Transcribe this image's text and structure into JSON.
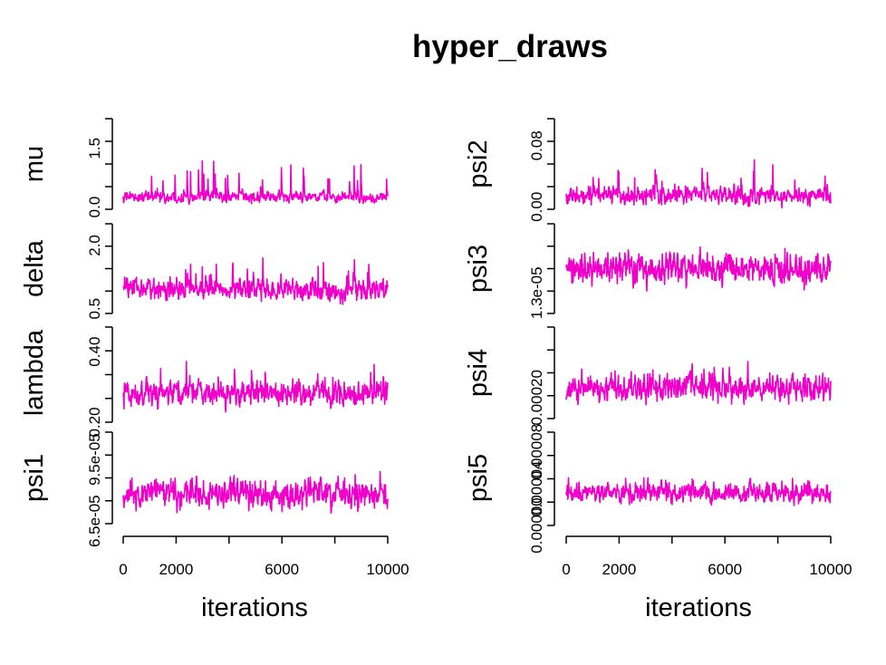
{
  "chart_data": {
    "type": "line",
    "title": "hyper_draws",
    "color": "#ee00c8",
    "x_range": [
      0,
      10000
    ],
    "xlabel": "iterations",
    "xticks": [
      0,
      2000,
      6000,
      10000
    ],
    "xtick_labels": [
      "0",
      "2000",
      "6000",
      "10000"
    ],
    "panels": [
      {
        "name": "mu",
        "ylabel": "mu",
        "column": 1,
        "row": 1,
        "yticks": [
          0.0,
          1.5
        ],
        "ytick_labels": [
          "0.0",
          "1.5"
        ],
        "ylim": [
          -0.15,
          2.35
        ],
        "baseline": 0.25,
        "noise": 0.12,
        "spike_rate": 0.06,
        "spike_scale": 0.9,
        "max": 2.3
      },
      {
        "name": "delta",
        "ylabel": "delta",
        "column": 1,
        "row": 2,
        "yticks": [
          0.5,
          2.0
        ],
        "ytick_labels": [
          "0.5",
          "2.0"
        ],
        "ylim": [
          0.3,
          2.6
        ],
        "baseline": 0.95,
        "noise": 0.22,
        "spike_rate": 0.05,
        "spike_scale": 0.7,
        "max": 2.5
      },
      {
        "name": "lambda",
        "ylabel": "lambda",
        "column": 1,
        "row": 3,
        "yticks": [
          0.2,
          0.4
        ],
        "ytick_labels": [
          "0.20",
          "0.40"
        ],
        "ylim": [
          0.2,
          0.48
        ],
        "baseline": 0.28,
        "noise": 0.03,
        "spike_rate": 0.04,
        "spike_scale": 0.06,
        "max": 0.46
      },
      {
        "name": "psi1",
        "ylabel": "psi1",
        "column": 1,
        "row": 4,
        "yticks": [
          6.5e-05,
          9.5e-05
        ],
        "ytick_labels": [
          "6.5e-05",
          "9.5e-05"
        ],
        "ylim": [
          6.2e-05,
          0.00011
        ],
        "baseline": 7.8e-05,
        "noise": 6e-06,
        "spike_rate": 0.03,
        "spike_scale": 8e-06,
        "max": 0.000108
      },
      {
        "name": "psi2",
        "ylabel": "psi2",
        "column": 2,
        "row": 1,
        "yticks": [
          0.0,
          0.08
        ],
        "ytick_labels": [
          "0.00",
          "0.08"
        ],
        "ylim": [
          -0.008,
          0.12
        ],
        "baseline": 0.015,
        "noise": 0.01,
        "spike_rate": 0.05,
        "spike_scale": 0.04,
        "max": 0.115
      },
      {
        "name": "psi3",
        "ylabel": "psi3",
        "column": 2,
        "row": 2,
        "yticks": [
          1.3e-05
        ],
        "ytick_labels": [
          "1.3e-05"
        ],
        "ylim": [
          1.15e-05,
          1.75e-05
        ],
        "baseline": 1.45e-05,
        "noise": 8e-07,
        "spike_rate": 0.03,
        "spike_scale": 9e-07,
        "max": 1.72e-05
      },
      {
        "name": "psi4",
        "ylabel": "psi4",
        "column": 2,
        "row": 3,
        "yticks": [
          0.0002
        ],
        "ytick_labels": [
          "0.00020"
        ],
        "ylim": [
          0.000175,
          0.000275
        ],
        "baseline": 0.00021,
        "noise": 1.2e-05,
        "spike_rate": 0.03,
        "spike_scale": 1.5e-05,
        "max": 0.00027
      },
      {
        "name": "psi5",
        "ylabel": "psi5",
        "column": 2,
        "row": 4,
        "yticks": [
          0.0,
          4e-05,
          8e-05
        ],
        "ytick_labels": [
          "0.00000",
          "0.00004",
          "0.00008"
        ],
        "ylim": [
          -2e-06,
          0.000105
        ],
        "baseline": 3.5e-05,
        "noise": 9e-06,
        "spike_rate": 0.04,
        "spike_scale": 1.8e-05,
        "max": 0.0001
      }
    ]
  }
}
